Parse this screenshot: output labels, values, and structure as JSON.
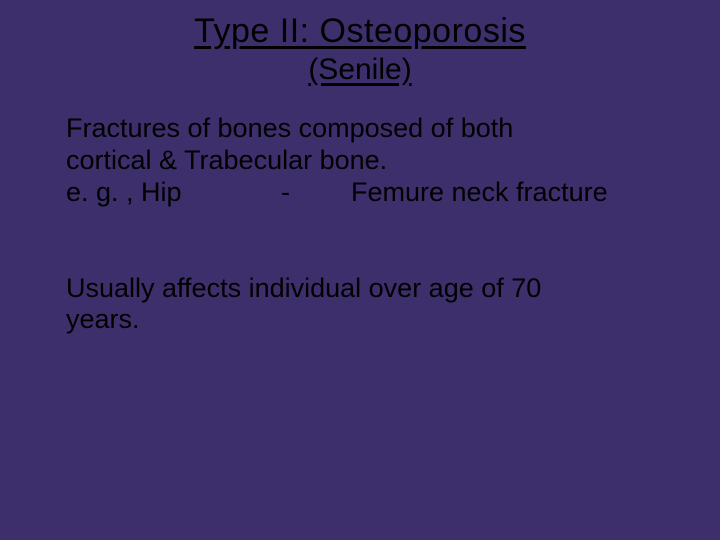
{
  "slide": {
    "background_color": "#3d2f6b",
    "text_color": "#000000",
    "title": "Type II: Osteoporosis",
    "subtitle": "(Senile)",
    "title_fontsize": 34,
    "subtitle_fontsize": 30,
    "body_fontsize": 27,
    "paragraph1_line1": "Fractures of bones composed of both",
    "paragraph1_line2": "cortical & Trabecular bone.",
    "example_left": "e. g. , Hip",
    "example_dash": "-",
    "example_right": "Femure neck fracture",
    "paragraph2_line1": "Usually affects individual over age of 70",
    "paragraph2_line2": "years."
  }
}
